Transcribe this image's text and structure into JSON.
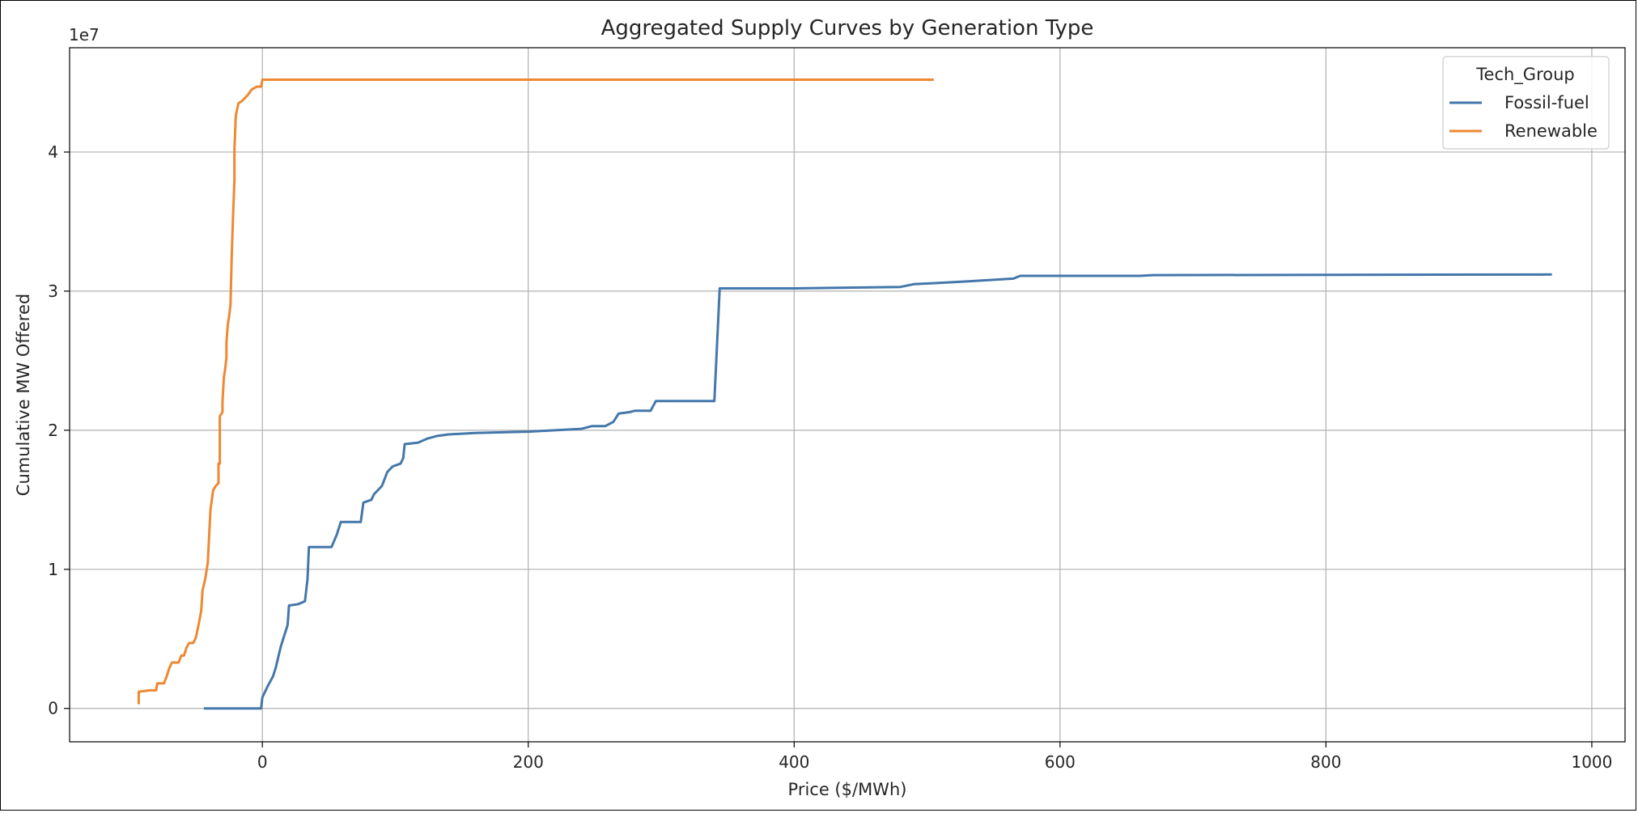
{
  "chart_data": {
    "type": "line",
    "title": "Aggregated Supply Curves by Generation Type",
    "xlabel": "Price ($/MWh)",
    "ylabel": "Cumulative MW Offered",
    "y_offset_text": "1e7",
    "xlim": [
      -145,
      1025
    ],
    "ylim": [
      -2400000,
      47500000
    ],
    "x_ticks": [
      0,
      200,
      400,
      600,
      800,
      1000
    ],
    "x_tick_labels": [
      "0",
      "200",
      "400",
      "600",
      "800",
      "1000"
    ],
    "y_ticks": [
      0,
      10000000,
      20000000,
      30000000,
      40000000
    ],
    "y_tick_labels": [
      "0",
      "1",
      "2",
      "3",
      "4"
    ],
    "grid": true,
    "legend": {
      "title": "Tech_Group",
      "placement": "top-right"
    },
    "series": [
      {
        "name": "Fossil-fuel",
        "color": "#4477aa",
        "points": [
          [
            -44,
            0
          ],
          [
            -1,
            0
          ],
          [
            0,
            800000
          ],
          [
            4,
            1600000
          ],
          [
            8,
            2300000
          ],
          [
            10,
            2900000
          ],
          [
            14,
            4500000
          ],
          [
            19,
            6000000
          ],
          [
            20,
            7400000
          ],
          [
            27,
            7500000
          ],
          [
            32,
            7700000
          ],
          [
            34,
            9300000
          ],
          [
            35,
            11600000
          ],
          [
            52,
            11600000
          ],
          [
            56,
            12500000
          ],
          [
            59,
            13400000
          ],
          [
            69,
            13400000
          ],
          [
            74,
            13400000
          ],
          [
            76,
            14800000
          ],
          [
            82,
            15000000
          ],
          [
            84,
            15400000
          ],
          [
            90,
            16000000
          ],
          [
            94,
            17000000
          ],
          [
            98,
            17400000
          ],
          [
            104,
            17600000
          ],
          [
            106,
            18000000
          ],
          [
            107,
            19000000
          ],
          [
            117,
            19100000
          ],
          [
            124,
            19400000
          ],
          [
            132,
            19600000
          ],
          [
            140,
            19700000
          ],
          [
            160,
            19800000
          ],
          [
            200,
            19900000
          ],
          [
            240,
            20100000
          ],
          [
            248,
            20300000
          ],
          [
            258,
            20300000
          ],
          [
            264,
            20600000
          ],
          [
            268,
            21200000
          ],
          [
            276,
            21300000
          ],
          [
            280,
            21400000
          ],
          [
            292,
            21400000
          ],
          [
            296,
            22100000
          ],
          [
            315,
            22100000
          ],
          [
            340,
            22100000
          ],
          [
            344,
            30200000
          ],
          [
            400,
            30200000
          ],
          [
            480,
            30300000
          ],
          [
            490,
            30500000
          ],
          [
            530,
            30700000
          ],
          [
            565,
            30900000
          ],
          [
            570,
            31100000
          ],
          [
            660,
            31100000
          ],
          [
            670,
            31150000
          ],
          [
            970,
            31200000
          ]
        ]
      },
      {
        "name": "Renewable",
        "color": "#ee8833",
        "points": [
          [
            -93,
            300000
          ],
          [
            -93,
            1200000
          ],
          [
            -85,
            1300000
          ],
          [
            -80,
            1300000
          ],
          [
            -79,
            1800000
          ],
          [
            -74,
            1800000
          ],
          [
            -72,
            2300000
          ],
          [
            -70,
            2900000
          ],
          [
            -68,
            3300000
          ],
          [
            -63,
            3300000
          ],
          [
            -61,
            3800000
          ],
          [
            -59,
            3800000
          ],
          [
            -57,
            4400000
          ],
          [
            -55,
            4700000
          ],
          [
            -52,
            4700000
          ],
          [
            -50,
            5100000
          ],
          [
            -48,
            6000000
          ],
          [
            -46,
            7000000
          ],
          [
            -45,
            8500000
          ],
          [
            -43,
            9300000
          ],
          [
            -41,
            10500000
          ],
          [
            -40,
            12500000
          ],
          [
            -39,
            14300000
          ],
          [
            -37,
            15700000
          ],
          [
            -35,
            16000000
          ],
          [
            -33,
            16200000
          ],
          [
            -33,
            17600000
          ],
          [
            -32,
            17600000
          ],
          [
            -32,
            21000000
          ],
          [
            -30,
            21300000
          ],
          [
            -30,
            22000000
          ],
          [
            -29,
            23800000
          ],
          [
            -28,
            24400000
          ],
          [
            -27,
            25200000
          ],
          [
            -27,
            26300000
          ],
          [
            -26,
            27600000
          ],
          [
            -25,
            28200000
          ],
          [
            -24,
            29000000
          ],
          [
            -23,
            32700000
          ],
          [
            -22,
            35600000
          ],
          [
            -21,
            38000000
          ],
          [
            -21,
            40200000
          ],
          [
            -20,
            42600000
          ],
          [
            -18,
            43500000
          ],
          [
            -15,
            43700000
          ],
          [
            -11,
            44100000
          ],
          [
            -8,
            44500000
          ],
          [
            -4,
            44700000
          ],
          [
            -1,
            44700000
          ],
          [
            0,
            45200000
          ],
          [
            505,
            45200000
          ]
        ]
      }
    ]
  }
}
